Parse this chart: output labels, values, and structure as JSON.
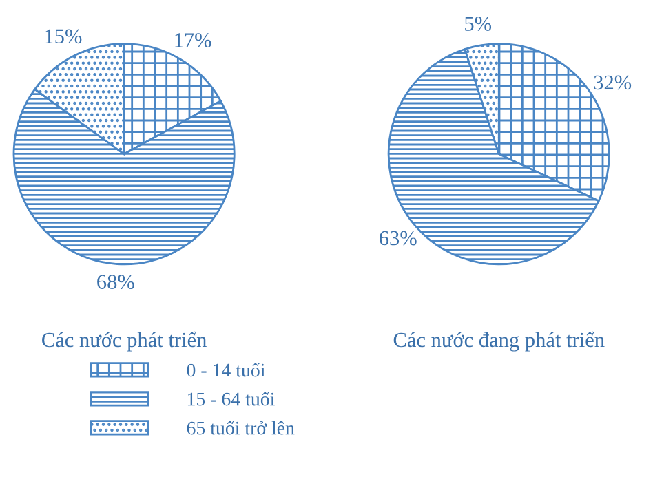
{
  "chart_data": [
    {
      "type": "pie",
      "title": "Các nước phát triển",
      "categories": [
        "0 - 14 tuổi",
        "15 - 64 tuổi",
        "65 tuổi trở lên"
      ],
      "values": [
        17,
        68,
        15
      ],
      "value_labels": [
        "17%",
        "68%",
        "15%"
      ],
      "colors": [
        "#4a86c5",
        "#4a86c5",
        "#4a86c5"
      ],
      "legend": "bottom"
    },
    {
      "type": "pie",
      "title": "Các nước đang phát triển",
      "categories": [
        null,
        null,
        null
      ],
      "values": [
        32,
        63,
        5
      ],
      "value_labels": [
        "32%",
        "63%",
        "5%"
      ],
      "colors": [
        "#4a86c5",
        "#4a86c5",
        "#4a86c5"
      ]
    }
  ]
}
